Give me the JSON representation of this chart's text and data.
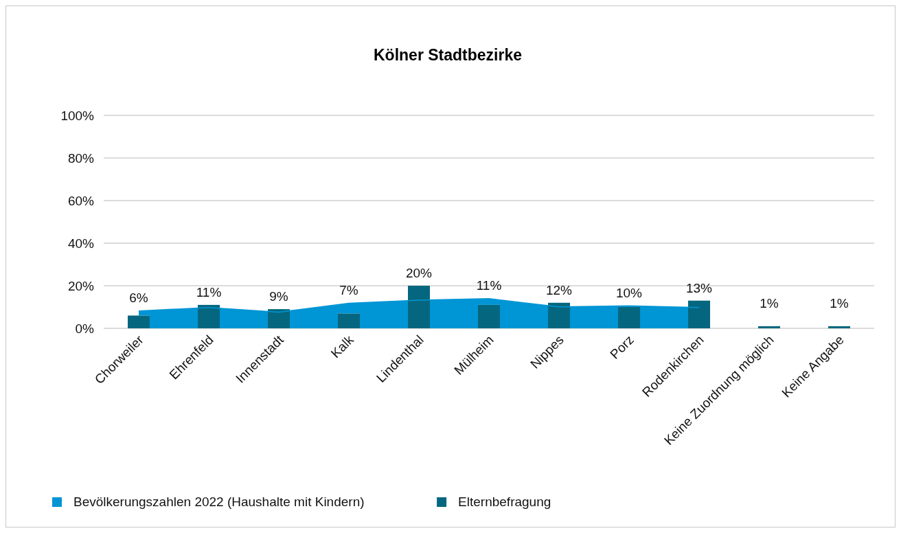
{
  "chart_data": {
    "type": "bar",
    "title": "Kölner Stadtbezirke",
    "categories": [
      "Chorweiler",
      "Ehrenfeld",
      "Innenstadt",
      "Kalk",
      "Lindenthal",
      "Mülheim",
      "Nippes",
      "Porz",
      "Rodenkirchen",
      "Keine Zuordnung möglich",
      "Keine Angabe"
    ],
    "series": [
      {
        "name": "Bevölkerungszahlen 2022 (Haushalte mit Kindern)",
        "type": "area",
        "color": "#0095d5",
        "values": [
          8.4,
          10,
          7.8,
          12,
          13.5,
          14.2,
          10.3,
          10.8,
          10,
          null,
          null
        ]
      },
      {
        "name": "Elternbefragung",
        "color": "#05677f",
        "values": [
          6,
          11,
          9,
          7,
          20,
          11,
          12,
          10,
          13,
          1,
          1
        ],
        "value_labels": [
          "6%",
          "11%",
          "9%",
          "7%",
          "20%",
          "11%",
          "12%",
          "10%",
          "13%",
          "1%",
          "1%"
        ]
      }
    ],
    "ylim": [
      0,
      100
    ],
    "yticks": [
      {
        "value": 0,
        "label": "0%"
      },
      {
        "value": 20,
        "label": "20%"
      },
      {
        "value": 40,
        "label": "40%"
      },
      {
        "value": 60,
        "label": "60%"
      },
      {
        "value": 80,
        "label": "80%"
      },
      {
        "value": 100,
        "label": "100%"
      }
    ],
    "grid": "y",
    "legend": "bottom left"
  }
}
